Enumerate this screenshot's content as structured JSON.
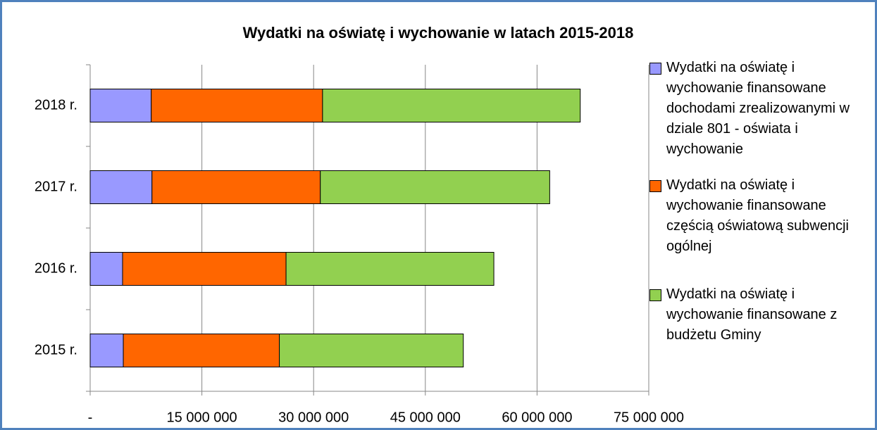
{
  "chart_data": {
    "type": "stacked_hbar",
    "title": "Wydatki na oświatę i wychowanie w latach 2015-2018",
    "categories": [
      "2018 r.",
      "2017 r.",
      "2016 r.",
      "2015 r."
    ],
    "series": [
      {
        "name": "Wydatki na oświatę i wychowanie finansowane dochodami zrealizowanymi w dziale 801 - oświata i wychowanie",
        "color": "#9999ff",
        "values": [
          8200000,
          8300000,
          4350000,
          4450000
        ]
      },
      {
        "name": "Wydatki na oświatę i wychowanie finansowane częścią oświatową subwencji ogólnej",
        "color": "#ff6600",
        "values": [
          23000000,
          22600000,
          21950000,
          20950000
        ]
      },
      {
        "name": "Wydatki na oświatę i wychowanie finansowane z budżetu Gminy",
        "color": "#92d050",
        "values": [
          34600000,
          30800000,
          27900000,
          24700000
        ]
      }
    ],
    "xlim": [
      0,
      75000000
    ],
    "xticks": [
      {
        "value": 0,
        "label": "-"
      },
      {
        "value": 15000000,
        "label": "15 000 000"
      },
      {
        "value": 30000000,
        "label": "30 000 000"
      },
      {
        "value": 45000000,
        "label": "45 000 000"
      },
      {
        "value": 60000000,
        "label": "60 000 000"
      },
      {
        "value": 75000000,
        "label": "75 000 000"
      }
    ],
    "grid": true,
    "legend": "right"
  }
}
